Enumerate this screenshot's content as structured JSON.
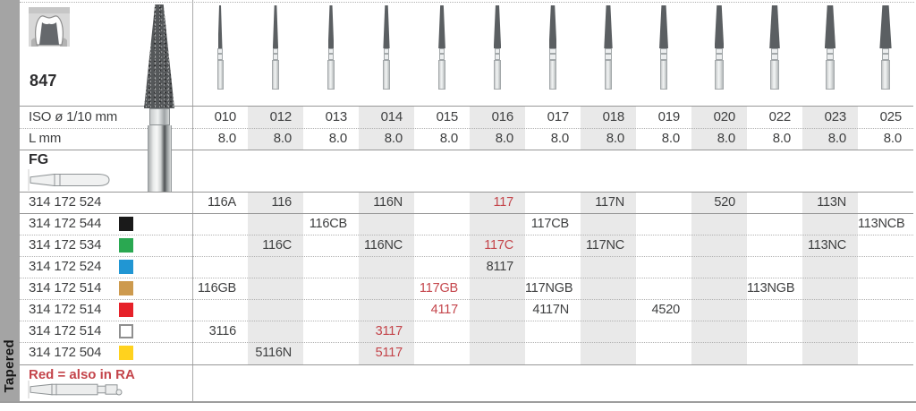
{
  "header": {
    "series": "847",
    "side_label": "Tapered",
    "tool_icon": "crown-prep-icon"
  },
  "table": {
    "iso_label": "ISO ø 1/10 mm",
    "l_label": "L mm",
    "shank_type_label": "FG",
    "columns": [
      "010",
      "012",
      "013",
      "014",
      "015",
      "016",
      "017",
      "018",
      "019",
      "020",
      "022",
      "023",
      "025"
    ],
    "l_values": [
      "8.0",
      "8.0",
      "8.0",
      "8.0",
      "8.0",
      "8.0",
      "8.0",
      "8.0",
      "8.0",
      "8.0",
      "8.0",
      "8.0",
      "8.0"
    ],
    "rows": [
      {
        "code": "314 172 524",
        "grit_color": null,
        "outlined": false,
        "cells": [
          {
            "col": "010",
            "text": "116A"
          },
          {
            "col": "012",
            "text": "116"
          },
          {
            "col": "014",
            "text": "116N"
          },
          {
            "col": "016",
            "text": "117",
            "red": true
          },
          {
            "col": "018",
            "text": "117N"
          },
          {
            "col": "020",
            "text": "520"
          },
          {
            "col": "023",
            "text": "113N"
          }
        ]
      },
      {
        "code": "314 172 544",
        "grit_color": "#1a1a1a",
        "outlined": false,
        "cells": [
          {
            "col": "013",
            "text": "116CB"
          },
          {
            "col": "017",
            "text": "117CB"
          },
          {
            "col": "025",
            "text": "113NCB"
          }
        ]
      },
      {
        "code": "314 172 534",
        "grit_color": "#2aa851",
        "outlined": false,
        "cells": [
          {
            "col": "012",
            "text": "116C"
          },
          {
            "col": "014",
            "text": "116NC"
          },
          {
            "col": "016",
            "text": "117C",
            "red": true
          },
          {
            "col": "018",
            "text": "117NC"
          },
          {
            "col": "023",
            "text": "113NC"
          }
        ]
      },
      {
        "code": "314 172 524",
        "grit_color": "#2196d3",
        "outlined": false,
        "cells": [
          {
            "col": "016",
            "text": "8117"
          }
        ]
      },
      {
        "code": "314 172 514",
        "grit_color": "#cd9a4e",
        "outlined": false,
        "cells": [
          {
            "col": "010",
            "text": "116GB"
          },
          {
            "col": "015",
            "text": "117GB",
            "red": true
          },
          {
            "col": "017",
            "text": "117NGB"
          },
          {
            "col": "022",
            "text": "113NGB"
          }
        ]
      },
      {
        "code": "314 172 514",
        "grit_color": "#e62129",
        "outlined": false,
        "cells": [
          {
            "col": "015",
            "text": "4117",
            "red": true
          },
          {
            "col": "017",
            "text": "4117N"
          },
          {
            "col": "019",
            "text": "4520"
          }
        ]
      },
      {
        "code": "314 172 514",
        "grit_color": "#ffffff",
        "outlined": true,
        "cells": [
          {
            "col": "010",
            "text": "3116"
          },
          {
            "col": "014",
            "text": "3117",
            "red": true
          }
        ]
      },
      {
        "code": "314 172 504",
        "grit_color": "#ffd21e",
        "outlined": false,
        "cells": [
          {
            "col": "012",
            "text": "5116N"
          },
          {
            "col": "014",
            "text": "5117",
            "red": true
          }
        ]
      }
    ],
    "footnote": "Red = also in RA"
  },
  "colors": {
    "red_text": "#c4454b",
    "band": "#e9e9e9",
    "strip": "#a4a4a4"
  }
}
